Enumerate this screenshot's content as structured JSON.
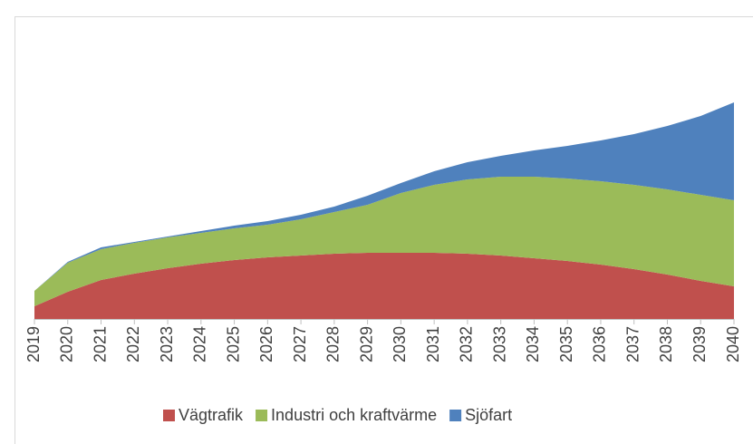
{
  "chart_data": {
    "type": "stacked_area",
    "categories": [
      "2019",
      "2020",
      "2021",
      "2022",
      "2023",
      "2024",
      "2025",
      "2026",
      "2027",
      "2028",
      "2029",
      "2030",
      "2031",
      "2032",
      "2033",
      "2034",
      "2035",
      "2036",
      "2037",
      "2038",
      "2039",
      "2040"
    ],
    "series": [
      {
        "name": "Vägtrafik",
        "color": "#c0504d",
        "values": [
          14,
          30,
          43,
          50,
          56,
          61,
          65,
          68,
          70,
          72,
          73,
          73,
          73,
          72,
          70,
          67,
          64,
          60,
          55,
          49,
          42,
          36
        ]
      },
      {
        "name": "Industri och kraftvärme",
        "color": "#9bbb59",
        "values": [
          17,
          32,
          34,
          34,
          34,
          34,
          35,
          36,
          40,
          46,
          53,
          66,
          75,
          82,
          87,
          90,
          91,
          92,
          93,
          94,
          95,
          95
        ]
      },
      {
        "name": "Sjöfart",
        "color": "#4f81bd",
        "values": [
          0,
          1,
          2,
          1,
          1,
          2,
          3,
          4,
          5,
          6,
          10,
          11,
          15,
          19,
          23,
          29,
          36,
          45,
          56,
          70,
          87,
          108
        ]
      }
    ],
    "ylim": [
      0,
      240
    ],
    "legend": "bottom"
  }
}
